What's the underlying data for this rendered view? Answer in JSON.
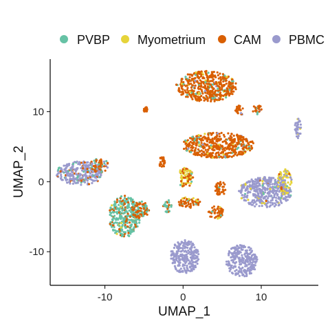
{
  "chart_data": {
    "type": "scatter",
    "title": "",
    "xlabel": "UMAP_1",
    "ylabel": "UMAP_2",
    "xlim": [
      -17,
      17.3
    ],
    "ylim": [
      -14.8,
      17.5
    ],
    "xticks": [
      -10,
      0,
      10
    ],
    "yticks": [
      -10,
      0,
      10
    ],
    "legend_position": "top",
    "grid": false,
    "series": [
      {
        "name": "PVBP",
        "color": "#66C2A5"
      },
      {
        "name": "Myometrium",
        "color": "#E6D43A"
      },
      {
        "name": "CAM",
        "color": "#D95F02"
      },
      {
        "name": "PBMC",
        "color": "#9A9ACD"
      }
    ],
    "clusters": [
      {
        "x": 3.0,
        "y": 13.6,
        "rx": 3.9,
        "ry": 2.2,
        "mix": [
          0.08,
          0.05,
          0.85,
          0.02
        ]
      },
      {
        "x": 7.3,
        "y": 10.2,
        "rx": 0.6,
        "ry": 0.7,
        "mix": [
          0.1,
          0.0,
          0.8,
          0.1
        ]
      },
      {
        "x": 9.5,
        "y": 10.3,
        "rx": 0.6,
        "ry": 0.7,
        "mix": [
          0.1,
          0.0,
          0.85,
          0.05
        ]
      },
      {
        "x": 4.5,
        "y": 5.2,
        "rx": 4.6,
        "ry": 1.8,
        "mix": [
          0.05,
          0.03,
          0.9,
          0.02
        ]
      },
      {
        "x": -13.2,
        "y": 1.2,
        "rx": 3.0,
        "ry": 1.7,
        "mix": [
          0.1,
          0.0,
          0.12,
          0.78
        ]
      },
      {
        "x": -10.8,
        "y": 2.3,
        "rx": 1.3,
        "ry": 1.0,
        "mix": [
          0.15,
          0.0,
          0.65,
          0.2
        ]
      },
      {
        "x": -7.5,
        "y": -5.0,
        "rx": 2.0,
        "ry": 3.0,
        "mix": [
          0.75,
          0.02,
          0.23,
          0.0
        ]
      },
      {
        "x": -5.5,
        "y": -4.0,
        "rx": 1.2,
        "ry": 1.2,
        "mix": [
          0.3,
          0.0,
          0.7,
          0.0
        ]
      },
      {
        "x": -2.7,
        "y": 2.8,
        "rx": 0.4,
        "ry": 0.8,
        "mix": [
          0.0,
          0.0,
          1.0,
          0.0
        ]
      },
      {
        "x": 0.3,
        "y": 0.6,
        "rx": 1.0,
        "ry": 1.4,
        "mix": [
          0.1,
          0.4,
          0.5,
          0.0
        ]
      },
      {
        "x": 0.8,
        "y": -3.0,
        "rx": 1.4,
        "ry": 0.8,
        "mix": [
          0.05,
          0.1,
          0.85,
          0.0
        ]
      },
      {
        "x": 4.8,
        "y": -1.0,
        "rx": 0.7,
        "ry": 1.0,
        "mix": [
          0.05,
          0.0,
          0.95,
          0.0
        ]
      },
      {
        "x": 4.2,
        "y": -4.4,
        "rx": 1.0,
        "ry": 0.9,
        "mix": [
          0.05,
          0.05,
          0.9,
          0.0
        ]
      },
      {
        "x": 10.5,
        "y": -1.5,
        "rx": 3.4,
        "ry": 2.2,
        "mix": [
          0.03,
          0.05,
          0.02,
          0.9
        ]
      },
      {
        "x": 13.0,
        "y": 0.0,
        "rx": 0.9,
        "ry": 1.8,
        "mix": [
          0.0,
          0.6,
          0.05,
          0.35
        ]
      },
      {
        "x": 14.7,
        "y": 7.7,
        "rx": 0.4,
        "ry": 1.5,
        "mix": [
          0.0,
          0.05,
          0.05,
          0.9
        ]
      },
      {
        "x": 0.2,
        "y": -10.7,
        "rx": 1.8,
        "ry": 2.4,
        "mix": [
          0.0,
          0.0,
          0.0,
          1.0
        ]
      },
      {
        "x": 7.5,
        "y": -11.3,
        "rx": 2.0,
        "ry": 2.3,
        "mix": [
          0.0,
          0.0,
          0.0,
          1.0
        ]
      },
      {
        "x": -4.8,
        "y": 10.3,
        "rx": 0.25,
        "ry": 0.4,
        "mix": [
          0.0,
          0.0,
          1.0,
          0.0
        ]
      },
      {
        "x": -2.0,
        "y": -3.5,
        "rx": 0.6,
        "ry": 0.9,
        "mix": [
          0.6,
          0.0,
          0.4,
          0.0
        ]
      }
    ]
  }
}
